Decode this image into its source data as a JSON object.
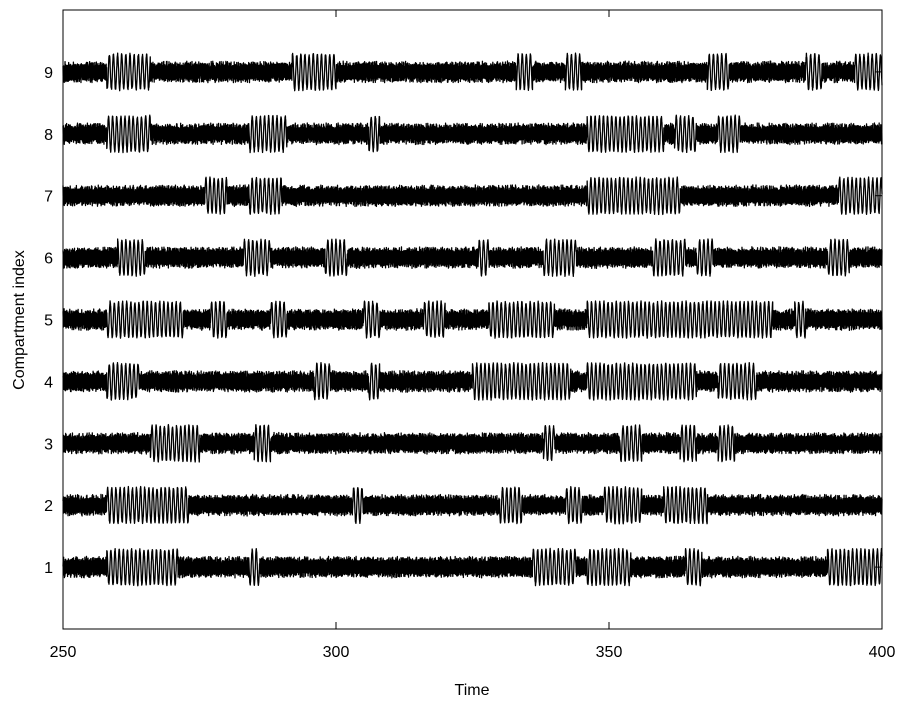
{
  "chart_data": {
    "type": "line",
    "title": "",
    "xlabel": "Time",
    "ylabel": "Compartment index",
    "xlim": [
      250,
      400
    ],
    "ylim": [
      0,
      10
    ],
    "xticks": [
      250,
      300,
      350,
      400
    ],
    "yticks": [
      1,
      2,
      3,
      4,
      5,
      6,
      7,
      8,
      9
    ],
    "grid": false,
    "legend": "none",
    "series": [
      {
        "compartment": 1,
        "baseline": 1,
        "amplitude": 0.18,
        "large_oscillation_windows": [
          [
            258,
            271
          ],
          [
            284,
            286
          ],
          [
            336,
            344
          ],
          [
            346,
            354
          ],
          [
            364,
            367
          ],
          [
            390,
            400
          ]
        ]
      },
      {
        "compartment": 2,
        "baseline": 2,
        "amplitude": 0.18,
        "large_oscillation_windows": [
          [
            258,
            273
          ],
          [
            303,
            305
          ],
          [
            330,
            334
          ],
          [
            342,
            345
          ],
          [
            349,
            356
          ],
          [
            360,
            368
          ]
        ]
      },
      {
        "compartment": 3,
        "baseline": 3,
        "amplitude": 0.18,
        "large_oscillation_windows": [
          [
            266,
            275
          ],
          [
            285,
            288
          ],
          [
            338,
            340
          ],
          [
            352,
            356
          ],
          [
            363,
            366
          ],
          [
            370,
            373
          ]
        ]
      },
      {
        "compartment": 4,
        "baseline": 4,
        "amplitude": 0.18,
        "large_oscillation_windows": [
          [
            258,
            264
          ],
          [
            296,
            299
          ],
          [
            306,
            308
          ],
          [
            325,
            343
          ],
          [
            346,
            366
          ],
          [
            370,
            377
          ]
        ]
      },
      {
        "compartment": 5,
        "baseline": 5,
        "amplitude": 0.18,
        "large_oscillation_windows": [
          [
            258,
            272
          ],
          [
            277,
            280
          ],
          [
            288,
            291
          ],
          [
            305,
            308
          ],
          [
            316,
            320
          ],
          [
            328,
            340
          ],
          [
            346,
            380
          ],
          [
            384,
            386
          ]
        ]
      },
      {
        "compartment": 6,
        "baseline": 6,
        "amplitude": 0.18,
        "large_oscillation_windows": [
          [
            260,
            265
          ],
          [
            283,
            288
          ],
          [
            298,
            302
          ],
          [
            326,
            328
          ],
          [
            338,
            344
          ],
          [
            358,
            364
          ],
          [
            366,
            369
          ],
          [
            390,
            394
          ]
        ]
      },
      {
        "compartment": 7,
        "baseline": 7,
        "amplitude": 0.18,
        "large_oscillation_windows": [
          [
            276,
            280
          ],
          [
            284,
            290
          ],
          [
            346,
            363
          ],
          [
            392,
            400
          ]
        ]
      },
      {
        "compartment": 8,
        "baseline": 8,
        "amplitude": 0.18,
        "large_oscillation_windows": [
          [
            258,
            266
          ],
          [
            284,
            291
          ],
          [
            306,
            308
          ],
          [
            346,
            360
          ],
          [
            362,
            366
          ],
          [
            370,
            374
          ]
        ]
      },
      {
        "compartment": 9,
        "baseline": 9,
        "amplitude": 0.18,
        "large_oscillation_windows": [
          [
            258,
            266
          ],
          [
            292,
            300
          ],
          [
            333,
            336
          ],
          [
            342,
            345
          ],
          [
            368,
            372
          ],
          [
            386,
            389
          ],
          [
            395,
            400
          ]
        ]
      }
    ]
  }
}
